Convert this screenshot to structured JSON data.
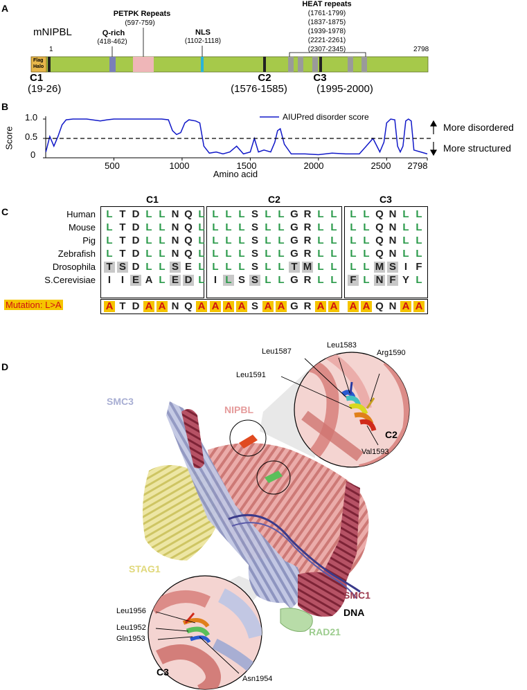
{
  "panel_a": {
    "label": "A",
    "protein": "mNIPBL",
    "start": "1",
    "end": "2798",
    "tag": [
      "Flag",
      "Halo"
    ],
    "qrich": {
      "name": "Q-rich",
      "range": "(418-462)"
    },
    "petpk": {
      "name": "PETPK Repeats",
      "range": "(597-759)"
    },
    "nls": {
      "name": "NLS",
      "range": "(1102-1118)"
    },
    "heat": {
      "name": "HEAT repeats",
      "ranges": [
        "(1761-1799)",
        "(1837-1875)",
        "(1939-1978)",
        "(2221-2261)",
        "(2307-2345)"
      ]
    },
    "motifs": [
      {
        "name": "C1",
        "range": "(19-26)"
      },
      {
        "name": "C2",
        "range": "(1576-1585)"
      },
      {
        "name": "C3",
        "range": "(1995-2000)"
      }
    ],
    "colors": {
      "backbone": "#a6c94a",
      "qrich": "#7a7fb8",
      "petpk": "#efb6b8",
      "nls": "#2ab3d9",
      "heat": "#9a9a9a",
      "tag": "#e6b64a",
      "motif": "#222222"
    }
  },
  "panel_b": {
    "label": "B",
    "ylabel": "Score",
    "xlabel": "Amino acid",
    "legend": "AIUPred disorder score",
    "annot_up": "More disordered",
    "annot_down": "More structured",
    "yticks": [
      "1.0",
      "0.5",
      "0"
    ],
    "xticks": [
      "500",
      "1000",
      "1500",
      "2000",
      "2500",
      "2798"
    ]
  },
  "chart_data": {
    "type": "line",
    "xlabel": "Amino acid",
    "ylabel": "Score",
    "xlim": [
      0,
      2798
    ],
    "ylim": [
      0,
      1.0
    ],
    "threshold": 0.5,
    "series": [
      {
        "name": "AIUPred disorder score",
        "color": "#1018c8",
        "x": [
          1,
          30,
          60,
          90,
          120,
          150,
          200,
          300,
          400,
          450,
          500,
          600,
          700,
          800,
          850,
          900,
          930,
          960,
          990,
          1020,
          1050,
          1100,
          1130,
          1160,
          1200,
          1250,
          1300,
          1350,
          1400,
          1450,
          1500,
          1530,
          1560,
          1600,
          1650,
          1680,
          1700,
          1720,
          1750,
          1800,
          1900,
          2000,
          2100,
          2200,
          2300,
          2350,
          2400,
          2450,
          2480,
          2500,
          2530,
          2560,
          2580,
          2600,
          2620,
          2640,
          2660,
          2680,
          2700,
          2750,
          2798
        ],
        "y": [
          0.15,
          0.55,
          0.3,
          0.55,
          0.85,
          0.98,
          1.0,
          1.0,
          0.95,
          0.98,
          1.0,
          1.0,
          1.0,
          1.0,
          1.0,
          0.98,
          0.7,
          0.6,
          0.65,
          0.9,
          0.98,
          0.95,
          0.9,
          0.3,
          0.12,
          0.15,
          0.1,
          0.15,
          0.3,
          0.1,
          0.15,
          0.5,
          0.15,
          0.2,
          0.15,
          0.4,
          0.7,
          0.75,
          0.35,
          0.1,
          0.1,
          0.08,
          0.12,
          0.1,
          0.1,
          0.3,
          0.5,
          0.15,
          0.4,
          0.9,
          1.0,
          0.98,
          0.3,
          0.15,
          0.3,
          0.95,
          1.0,
          0.95,
          0.2,
          0.15,
          0.1
        ]
      }
    ]
  },
  "panel_c": {
    "label": "C",
    "species": [
      "Human",
      "Mouse",
      "Pig",
      "Zebrafish",
      "Drosophila",
      "S.Cerevisiae"
    ],
    "mutation_label": "Mutation: L>A",
    "blocks": [
      {
        "name": "C1",
        "rows": [
          "LTDLLNQL",
          "LTDLLNQL",
          "LTDLLNQL",
          "LTDLLNQL",
          "TSDLLSEL",
          "IIEALEDL"
        ],
        "mutant": "ATDAANQA",
        "shade": [
          "",
          "",
          "",
          "",
          "xx...x.",
          "..x..xx."
        ]
      },
      {
        "name": "C2",
        "rows": [
          "LLLSLLGRLL",
          "LLLSLLGRLL",
          "LLLSLLGRLL",
          "LLLSLLGRLL",
          "LLLSLLTMLL",
          "ILSSLLGRLL"
        ],
        "mutant": "AAASAAGRAA",
        "shade": [
          "",
          "",
          "",
          "",
          "......xx..",
          ".x.x......"
        ]
      },
      {
        "name": "C3",
        "rows": [
          "LLQNLL",
          "LLQNLL",
          "LLQNLL",
          "LLQNLL",
          "LLMSIF",
          "FLNFYL"
        ],
        "mutant": "AAQNAA",
        "shade": [
          "",
          "",
          "",
          "",
          "..xx..",
          "x.xx.."
        ]
      }
    ]
  },
  "panel_d": {
    "label": "D",
    "chains": [
      {
        "name": "SMC3",
        "color": "#a8aed3"
      },
      {
        "name": "NIPBL",
        "color": "#e59b9b"
      },
      {
        "name": "STAG1",
        "color": "#e0d87a"
      },
      {
        "name": "SMC1",
        "color": "#9c3a4e"
      },
      {
        "name": "DNA",
        "color": "#000000"
      },
      {
        "name": "RAD21",
        "color": "#9ccc8e"
      }
    ],
    "zoom_c2": {
      "label": "C2",
      "residues": [
        "Leu1583",
        "Leu1587",
        "Arg1590",
        "Leu1591",
        "Val1593"
      ]
    },
    "zoom_c3": {
      "label": "C3",
      "residues": [
        "Leu1956",
        "Leu1952",
        "Gln1953",
        "Asn1954"
      ]
    }
  }
}
